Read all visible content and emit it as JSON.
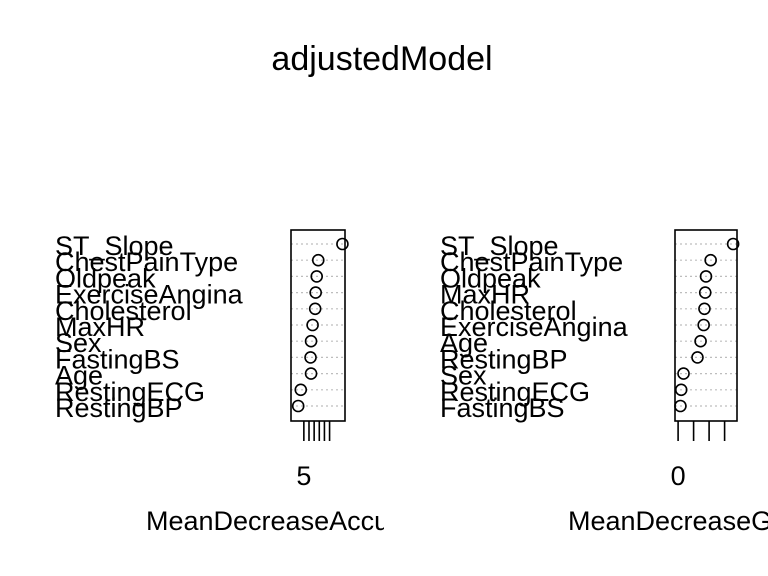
{
  "title": "adjustedModel",
  "chart_data": [
    {
      "type": "scatter",
      "xlabel": "MeanDecreaseAccuracy",
      "xlim": [
        2.5,
        13.0
      ],
      "ticks": [
        5,
        6,
        7,
        8,
        9,
        10
      ],
      "tick_labels_shown": [
        "5"
      ],
      "categories": [
        "ST_Slope",
        "ChestPainType",
        "Oldpeak",
        "ExerciseAngina",
        "Cholesterol",
        "MaxHR",
        "Sex",
        "FastingBS",
        "Age",
        "RestingECG",
        "RestingBP"
      ],
      "values": [
        12.5,
        7.8,
        7.5,
        7.3,
        7.2,
        6.7,
        6.4,
        6.3,
        6.4,
        4.4,
        3.9
      ],
      "grid": true
    },
    {
      "type": "scatter",
      "xlabel": "MeanDecreaseGini",
      "xlim": [
        -2.0,
        38.0
      ],
      "ticks": [
        0,
        10,
        20,
        30
      ],
      "tick_labels_shown": [
        "0"
      ],
      "categories": [
        "ST_Slope",
        "ChestPainType",
        "Oldpeak",
        "MaxHR",
        "Cholesterol",
        "ExerciseAngina",
        "Age",
        "RestingBP",
        "Sex",
        "RestingECG",
        "FastingBS"
      ],
      "values": [
        35.5,
        21.0,
        18.0,
        17.5,
        17.0,
        16.5,
        14.5,
        12.5,
        3.5,
        2.0,
        1.5
      ],
      "grid": true
    }
  ]
}
